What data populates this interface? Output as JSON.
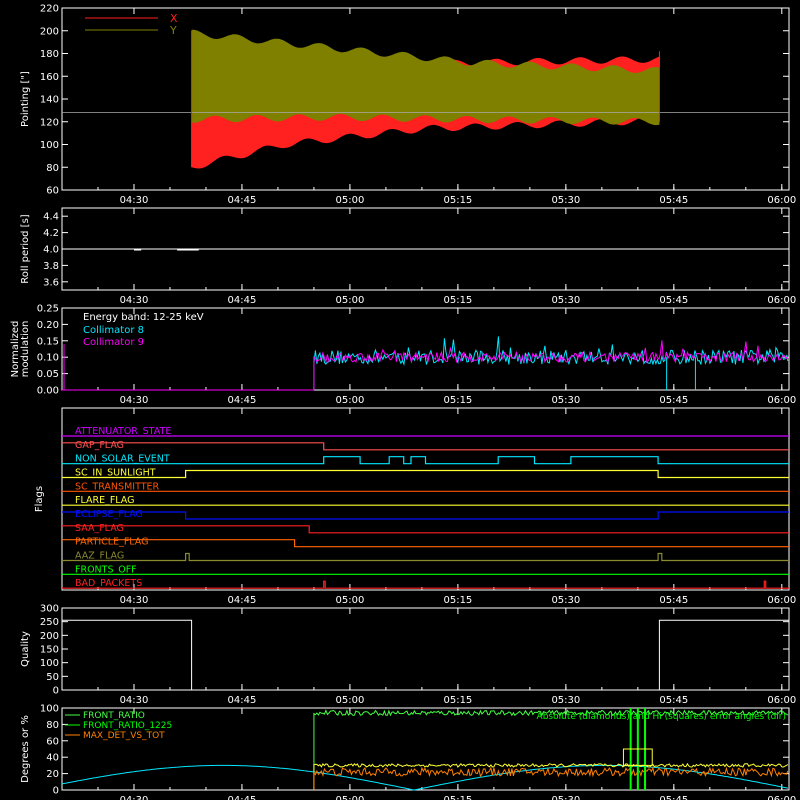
{
  "colors": {
    "background": "#000000",
    "axis": "#ffffff",
    "red": "#ff2020",
    "olive": "#7f7f00",
    "cyan": "#00e8ff",
    "magenta": "#ff00ff",
    "green": "#00ff00",
    "lightgreen": "#44ff44",
    "orange": "#ff8000",
    "yellow": "#ffff33",
    "blue": "#0010ff",
    "brown": "#ff5500",
    "darkorange": "#ff6600",
    "purple": "#cc00ff",
    "gaporange": "#ff5050",
    "aazolive": "#8a8a30"
  },
  "chart_data": [
    {
      "id": "pointing",
      "type": "area",
      "ylabel": "Pointing [\"]",
      "xlim": [
        "04:20",
        "06:01"
      ],
      "ylim": [
        60,
        220
      ],
      "yticks": [
        "60",
        "80",
        "100",
        "120",
        "140",
        "160",
        "180",
        "200",
        "220"
      ],
      "xticks": [
        "04:30",
        "04:45",
        "05:00",
        "05:15",
        "05:30",
        "05:45",
        "06:00"
      ],
      "legend": [
        {
          "name": "X",
          "color": "#ff2020"
        },
        {
          "name": "Y",
          "color": "#7f7f00"
        }
      ],
      "reference_line": 128,
      "data_range": [
        "04:38",
        "05:43"
      ],
      "envelope": {
        "x_upper": [
          [
            0,
            165
          ],
          [
            0.3,
            168
          ],
          [
            0.6,
            172
          ],
          [
            1,
            175
          ]
        ],
        "x_lower": [
          [
            0,
            80
          ],
          [
            0.2,
            100
          ],
          [
            0.5,
            114
          ],
          [
            1,
            121
          ]
        ],
        "y_upper": [
          [
            0,
            198
          ],
          [
            0.3,
            185
          ],
          [
            0.6,
            172
          ],
          [
            1,
            165
          ]
        ],
        "y_lower": [
          [
            0,
            122
          ],
          [
            0.3,
            124
          ],
          [
            0.6,
            122
          ],
          [
            1,
            120
          ]
        ]
      }
    },
    {
      "id": "roll",
      "type": "line",
      "ylabel": "Roll period [s]",
      "ylim": [
        3.5,
        4.5
      ],
      "yticks": [
        "3.6",
        "3.8",
        "4.0",
        "4.2",
        "4.4"
      ],
      "xticks": [
        "04:30",
        "04:45",
        "05:00",
        "05:15",
        "05:30",
        "05:45",
        "06:00"
      ],
      "value": 4.0
    },
    {
      "id": "modulation",
      "type": "line",
      "ylabel": "Normalized modulation",
      "ylim": [
        0,
        0.25
      ],
      "yticks": [
        "0.00",
        "0.05",
        "0.10",
        "0.15",
        "0.20",
        "0.25"
      ],
      "xticks": [
        "04:30",
        "04:45",
        "05:00",
        "05:15",
        "05:30",
        "05:45",
        "06:00"
      ],
      "annotations": [
        "Energy band: 12-25 keV"
      ],
      "legend": [
        {
          "name": "Collimator 8",
          "color": "#00e8ff"
        },
        {
          "name": "Collimator 9",
          "color": "#ff00ff"
        }
      ],
      "data_start": "04:55",
      "baseline": 0.1
    },
    {
      "id": "flags",
      "type": "line",
      "ylabel": "Flags",
      "xticks": [
        "04:30",
        "04:45",
        "05:00",
        "05:15",
        "05:30",
        "05:45",
        "06:00"
      ],
      "flags": [
        {
          "name": "ATTENUATOR_STATE",
          "color": "#cc00ff",
          "segments": [
            [
              0,
              0
            ]
          ]
        },
        {
          "name": "GAP_FLAG",
          "color": "#ff5050",
          "segments": [
            [
              0,
              1
            ],
            [
              0.005,
              1
            ],
            [
              0.005,
              1
            ],
            [
              0.36,
              1
            ],
            [
              0.36,
              0
            ]
          ]
        },
        {
          "name": "NON_SOLAR_EVENT",
          "color": "#00e8ff",
          "segments": [
            [
              0,
              0
            ],
            [
              0.36,
              0
            ],
            [
              0.36,
              1
            ],
            [
              0.41,
              1
            ],
            [
              0.41,
              0
            ],
            [
              0.45,
              0
            ],
            [
              0.45,
              1
            ],
            [
              0.47,
              1
            ],
            [
              0.47,
              0
            ],
            [
              0.48,
              0
            ],
            [
              0.48,
              1
            ],
            [
              0.5,
              1
            ],
            [
              0.5,
              0
            ],
            [
              0.6,
              0
            ],
            [
              0.6,
              1
            ],
            [
              0.65,
              1
            ],
            [
              0.65,
              0
            ],
            [
              0.7,
              0
            ],
            [
              0.7,
              1
            ],
            [
              0.82,
              1
            ],
            [
              0.82,
              0
            ]
          ]
        },
        {
          "name": "SC_IN_SUNLIGHT",
          "color": "#ffff33",
          "segments": [
            [
              0,
              0
            ],
            [
              0.17,
              0
            ],
            [
              0.17,
              1
            ],
            [
              0.82,
              1
            ],
            [
              0.82,
              0
            ]
          ]
        },
        {
          "name": "SC_TRANSMITTER",
          "color": "#ff5500",
          "segments": [
            [
              0,
              0
            ]
          ]
        },
        {
          "name": "FLARE_FLAG",
          "color": "#ffff33",
          "segments": [
            [
              0,
              0
            ]
          ]
        },
        {
          "name": "ECLIPSE_FLAG",
          "color": "#0010ff",
          "segments": [
            [
              0,
              1
            ],
            [
              0.17,
              1
            ],
            [
              0.17,
              0
            ],
            [
              0.82,
              0
            ],
            [
              0.82,
              1
            ]
          ]
        },
        {
          "name": "SAA_FLAG",
          "color": "#ff2020",
          "segments": [
            [
              0,
              1
            ],
            [
              0.34,
              1
            ],
            [
              0.34,
              0
            ]
          ]
        },
        {
          "name": "PARTICLE_FLAG",
          "color": "#ff6600",
          "segments": [
            [
              0,
              1
            ],
            [
              0.32,
              1
            ],
            [
              0.32,
              0
            ]
          ]
        },
        {
          "name": "AAZ_FLAG",
          "color": "#8a8a30",
          "segments": [
            [
              0,
              0
            ],
            [
              0.17,
              0
            ],
            [
              0.17,
              1
            ],
            [
              0.175,
              1
            ],
            [
              0.175,
              0
            ],
            [
              0.82,
              0
            ],
            [
              0.82,
              1
            ],
            [
              0.825,
              1
            ],
            [
              0.825,
              0
            ]
          ]
        },
        {
          "name": "FRONTS_OFF",
          "color": "#00ff00",
          "segments": [
            [
              0,
              0
            ]
          ]
        },
        {
          "name": "BAD_PACKETS",
          "color": "#ff2020",
          "segments": [
            [
              0,
              0
            ],
            [
              0.36,
              0
            ],
            [
              0.36,
              1
            ],
            [
              0.362,
              1
            ],
            [
              0.362,
              0
            ],
            [
              0.966,
              0
            ],
            [
              0.966,
              1
            ],
            [
              0.968,
              1
            ],
            [
              0.968,
              0
            ]
          ]
        }
      ]
    },
    {
      "id": "quality",
      "type": "line",
      "ylabel": "Quality",
      "ylim": [
        0,
        300
      ],
      "yticks": [
        "0",
        "50",
        "100",
        "150",
        "200",
        "250",
        "300"
      ],
      "xticks": [
        "04:30",
        "04:45",
        "05:00",
        "05:15",
        "05:30",
        "05:45",
        "06:00"
      ],
      "points": [
        [
          "04:20",
          255
        ],
        [
          "04:38",
          255
        ],
        [
          "04:38",
          0
        ],
        [
          "05:43",
          0
        ],
        [
          "05:43",
          255
        ],
        [
          "06:01",
          255
        ]
      ]
    },
    {
      "id": "front_ratio",
      "type": "line",
      "ylabel": "Degrees or %",
      "ylim": [
        0,
        100
      ],
      "yticks": [
        "0",
        "20",
        "40",
        "60",
        "80",
        "100"
      ],
      "xticks": [
        "04:30",
        "04:45",
        "05:00",
        "05:15",
        "05:30",
        "05:45",
        "06:00"
      ],
      "legend": [
        {
          "name": "FRONT_RATIO",
          "color": "#44ff44"
        },
        {
          "name": "FRONT_RATIO_1225",
          "color": "#00ff00"
        },
        {
          "name": "MAX_DET_VS_TOT",
          "color": "#ff8000"
        }
      ],
      "annotation": "Absolute (diamonds) and Hi (squares) error angles (dir)",
      "data_start": "04:55",
      "levels": {
        "front_ratio": 94,
        "yellow": 30,
        "max_det": 22
      }
    }
  ]
}
